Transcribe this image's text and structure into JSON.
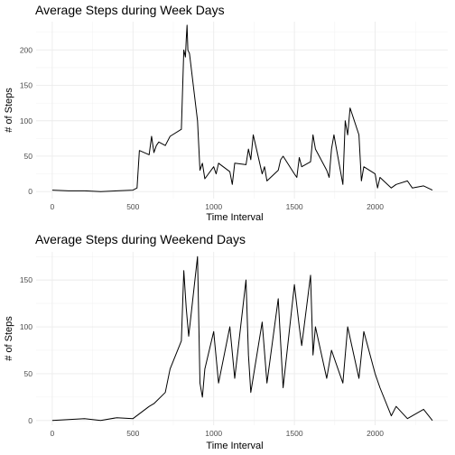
{
  "chart_data": [
    {
      "type": "line",
      "title": "Average Steps during Week Days",
      "xlabel": "Time Interval",
      "ylabel": "# of Steps",
      "xlim": [
        -100,
        2450
      ],
      "ylim": [
        -10,
        240
      ],
      "x_ticks": [
        0,
        500,
        1000,
        1500,
        2000
      ],
      "y_ticks": [
        0,
        50,
        100,
        150,
        200
      ],
      "grid": true,
      "x": [
        0,
        100,
        200,
        300,
        400,
        500,
        525,
        540,
        600,
        615,
        630,
        645,
        660,
        700,
        730,
        800,
        815,
        825,
        830,
        835,
        840,
        850,
        900,
        915,
        930,
        945,
        1000,
        1015,
        1030,
        1100,
        1115,
        1130,
        1200,
        1215,
        1230,
        1245,
        1300,
        1315,
        1330,
        1400,
        1415,
        1430,
        1500,
        1515,
        1530,
        1545,
        1600,
        1615,
        1630,
        1700,
        1715,
        1730,
        1745,
        1800,
        1815,
        1830,
        1845,
        1900,
        1915,
        1930,
        2000,
        2015,
        2030,
        2100,
        2130,
        2200,
        2230,
        2300,
        2355
      ],
      "y": [
        2,
        1,
        1,
        0,
        1,
        2,
        5,
        58,
        52,
        78,
        55,
        65,
        70,
        65,
        78,
        88,
        200,
        190,
        215,
        235,
        200,
        195,
        100,
        30,
        40,
        18,
        35,
        25,
        40,
        28,
        10,
        40,
        38,
        60,
        45,
        80,
        25,
        35,
        15,
        30,
        45,
        50,
        25,
        20,
        48,
        35,
        42,
        80,
        60,
        30,
        20,
        60,
        80,
        10,
        100,
        80,
        118,
        80,
        15,
        35,
        25,
        5,
        20,
        5,
        10,
        15,
        5,
        8,
        2
      ]
    },
    {
      "type": "line",
      "title": "Average Steps during Weekend Days",
      "xlabel": "Time Interval",
      "ylabel": "# of Steps",
      "xlim": [
        -100,
        2450
      ],
      "ylim": [
        -5,
        180
      ],
      "x_ticks": [
        0,
        500,
        1000,
        1500,
        2000
      ],
      "y_ticks": [
        0,
        50,
        100,
        150
      ],
      "grid": true,
      "x": [
        0,
        100,
        200,
        300,
        400,
        500,
        600,
        630,
        700,
        730,
        800,
        815,
        830,
        845,
        900,
        915,
        930,
        945,
        1000,
        1030,
        1100,
        1130,
        1200,
        1215,
        1230,
        1300,
        1330,
        1400,
        1430,
        1500,
        1530,
        1545,
        1600,
        1615,
        1630,
        1700,
        1730,
        1800,
        1830,
        1900,
        1930,
        2000,
        2030,
        2100,
        2130,
        2200,
        2300,
        2355
      ],
      "y": [
        0,
        1,
        2,
        0,
        3,
        2,
        15,
        18,
        30,
        55,
        85,
        160,
        120,
        90,
        175,
        40,
        25,
        55,
        95,
        40,
        100,
        45,
        150,
        70,
        30,
        105,
        40,
        130,
        35,
        145,
        100,
        80,
        155,
        70,
        100,
        45,
        75,
        40,
        100,
        45,
        95,
        50,
        35,
        5,
        15,
        2,
        12,
        0
      ]
    }
  ]
}
